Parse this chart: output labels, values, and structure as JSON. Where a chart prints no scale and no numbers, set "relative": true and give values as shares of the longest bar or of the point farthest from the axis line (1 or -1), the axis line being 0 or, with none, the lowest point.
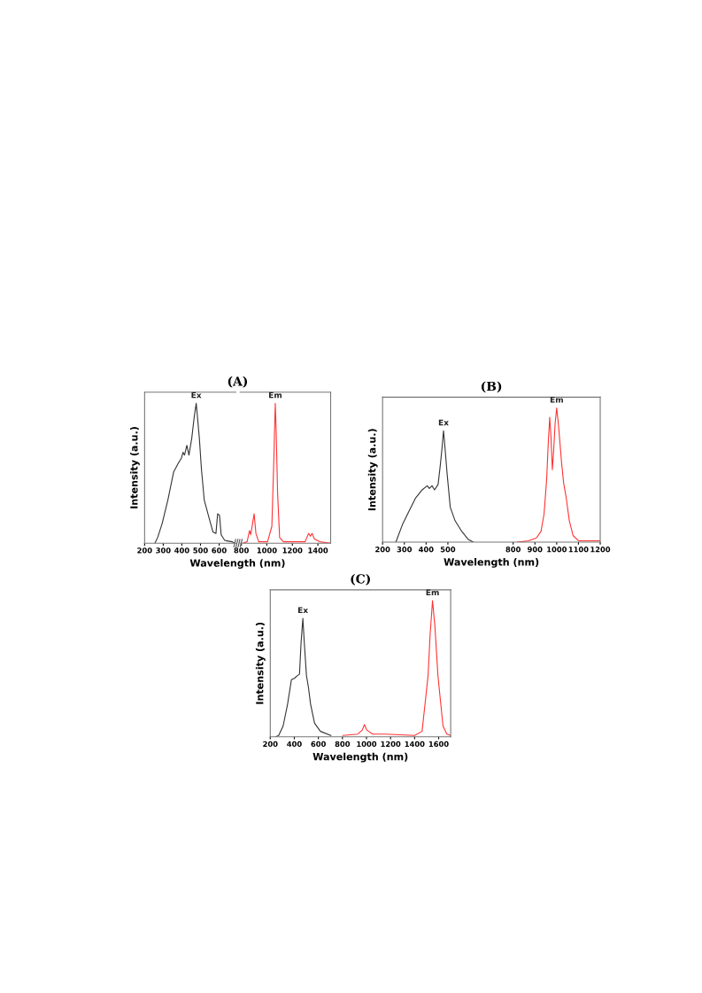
{
  "chart_data": [
    {
      "type": "line",
      "title": "(A)",
      "ylabel": "Intensity (a.u.)",
      "relative": true,
      "xlim": [
        200,
        690
      ],
      "xticks": [
        200,
        300,
        400,
        500,
        600
      ],
      "grid": false,
      "legend": false,
      "annotations": [
        {
          "text": "Ex",
          "x": 477,
          "y": 1.0
        }
      ],
      "series": [
        {
          "color": "#333333",
          "x": [
            255,
            270,
            294,
            325,
            356,
            380,
            398,
            406,
            414,
            427,
            438,
            453,
            466,
            477,
            484,
            494,
            505,
            520,
            544,
            567,
            583,
            592,
            602,
            611,
            630,
            669,
            684
          ],
          "values": [
            0,
            0.04,
            0.14,
            0.31,
            0.51,
            0.57,
            0.61,
            0.65,
            0.63,
            0.7,
            0.63,
            0.75,
            0.9,
            1.0,
            0.9,
            0.75,
            0.53,
            0.31,
            0.19,
            0.08,
            0.07,
            0.21,
            0.2,
            0.06,
            0.02,
            0.01,
            0
          ]
        }
      ]
    },
    {
      "type": "line",
      "xlabel": "Wavelength (nm)",
      "relative": true,
      "xlim": [
        790,
        1500
      ],
      "xticks": [
        800,
        1000,
        1200,
        1400
      ],
      "grid": false,
      "legend": false,
      "annotations": [
        {
          "text": "Em",
          "x": 1066,
          "y": 1.0
        }
      ],
      "series": [
        {
          "color": "#ff3333",
          "x": [
            811,
            845,
            864,
            873,
            886,
            900,
            914,
            936,
            1005,
            1039,
            1055,
            1061,
            1066,
            1073,
            1084,
            1100,
            1130,
            1300,
            1327,
            1341,
            1355,
            1373,
            1414,
            1500
          ],
          "values": [
            0,
            0.01,
            0.09,
            0.06,
            0.13,
            0.21,
            0.07,
            0.01,
            0.01,
            0.12,
            0.61,
            0.83,
            1.0,
            0.8,
            0.36,
            0.04,
            0.01,
            0.01,
            0.07,
            0.05,
            0.07,
            0.03,
            0.01,
            0
          ]
        }
      ]
    },
    {
      "type": "line",
      "title": "(B)",
      "xlabel": "Wavelength (nm)",
      "ylabel": "Intensity (a.u.)",
      "relative": true,
      "xlim": [
        200,
        1200
      ],
      "xticks": [
        200,
        300,
        400,
        500,
        800,
        900,
        1000,
        1100,
        1200
      ],
      "grid": false,
      "legend": false,
      "annotations": [
        {
          "text": "Ex",
          "x": 480,
          "y": 0.83
        },
        {
          "text": "Em",
          "x": 1000,
          "y": 1.0
        }
      ],
      "series": [
        {
          "color": "#333333",
          "x": [
            261,
            291,
            321,
            352,
            382,
            405,
            415,
            427,
            439,
            455,
            465,
            473,
            480,
            488,
            497,
            511,
            533,
            564,
            594,
            617
          ],
          "values": [
            0,
            0.13,
            0.23,
            0.33,
            0.39,
            0.42,
            0.4,
            0.42,
            0.39,
            0.43,
            0.57,
            0.7,
            0.83,
            0.68,
            0.5,
            0.26,
            0.16,
            0.08,
            0.02,
            0
          ]
        },
        {
          "color": "#ff3333",
          "x": [
            819,
            870,
            906,
            928,
            942,
            954,
            961,
            968,
            974,
            980,
            986,
            993,
            1000,
            1009,
            1022,
            1032,
            1043,
            1058,
            1075,
            1101,
            1200
          ],
          "values": [
            0,
            0.01,
            0.03,
            0.08,
            0.21,
            0.47,
            0.73,
            0.93,
            0.78,
            0.54,
            0.68,
            0.89,
            1.0,
            0.86,
            0.6,
            0.44,
            0.34,
            0.16,
            0.05,
            0.01,
            0.01
          ]
        }
      ]
    },
    {
      "type": "line",
      "title": "(C)",
      "xlabel": "Wavelength (nm)",
      "ylabel": "Intensity (a.u.)",
      "relative": true,
      "xlim": [
        200,
        1700
      ],
      "xticks": [
        200,
        400,
        600,
        800,
        1000,
        1200,
        1400,
        1600
      ],
      "grid": false,
      "legend": false,
      "annotations": [
        {
          "text": "Ex",
          "x": 471,
          "y": 0.87
        },
        {
          "text": "Em",
          "x": 1549,
          "y": 1.0
        }
      ],
      "series": [
        {
          "color": "#333333",
          "x": [
            245,
            270,
            307,
            344,
            376,
            401,
            426,
            443,
            456,
            471,
            483,
            501,
            518,
            535,
            568,
            617,
            704
          ],
          "values": [
            0,
            0.01,
            0.08,
            0.24,
            0.42,
            0.43,
            0.45,
            0.46,
            0.69,
            0.87,
            0.69,
            0.45,
            0.36,
            0.24,
            0.1,
            0.04,
            0.01
          ]
        },
        {
          "color": "#ff3333",
          "x": [
            804,
            928,
            965,
            983,
            1002,
            1052,
            1152,
            1400,
            1462,
            1494,
            1512,
            1529,
            1549,
            1569,
            1594,
            1611,
            1636,
            1668,
            1700
          ],
          "values": [
            0.01,
            0.02,
            0.05,
            0.09,
            0.05,
            0.02,
            0.02,
            0.01,
            0.04,
            0.3,
            0.45,
            0.75,
            1.0,
            0.81,
            0.45,
            0.3,
            0.08,
            0.02,
            0.01
          ]
        }
      ]
    }
  ]
}
